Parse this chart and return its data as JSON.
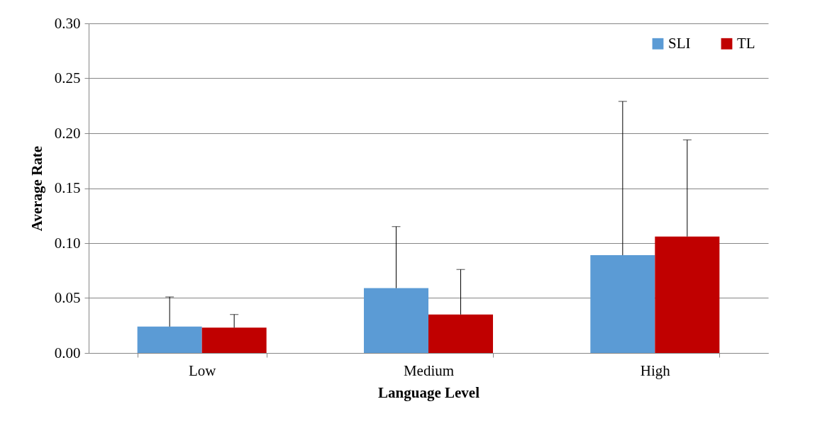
{
  "chart_data": {
    "type": "bar",
    "xlabel": "Language Level",
    "ylabel": "Average Rate",
    "categories": [
      "Low",
      "Medium",
      "High"
    ],
    "series": [
      {
        "name": "SLI",
        "color": "#5b9bd5",
        "values": [
          0.024,
          0.059,
          0.089
        ],
        "errors": [
          [
            0.024,
            0.051
          ],
          [
            0.059,
            0.115
          ],
          [
            0.089,
            0.229
          ]
        ]
      },
      {
        "name": "TL",
        "color": "#c00000",
        "values": [
          0.023,
          0.035,
          0.106
        ],
        "errors": [
          [
            0.023,
            0.035
          ],
          [
            0.035,
            0.076
          ],
          [
            0.106,
            0.194
          ]
        ]
      }
    ],
    "ylim": [
      0,
      0.3
    ],
    "yticks": [
      {
        "value": 0,
        "label": "0.00"
      },
      {
        "value": 0.05,
        "label": "0.05"
      },
      {
        "value": 0.1,
        "label": "0.10"
      },
      {
        "value": 0.15,
        "label": "0.15"
      },
      {
        "value": 0.2,
        "label": "0.20"
      },
      {
        "value": 0.25,
        "label": "0.25"
      },
      {
        "value": 0.3,
        "label": "0.30"
      }
    ],
    "grid": "y",
    "legend": "top right"
  }
}
